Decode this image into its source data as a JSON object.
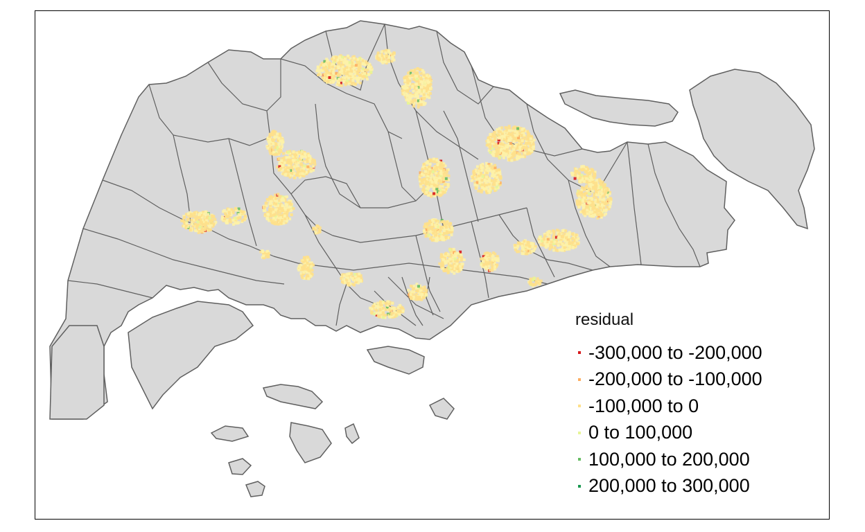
{
  "legend": {
    "title": "residual",
    "classes": [
      {
        "label": "-300,000 to -200,000",
        "color": "#d7191c"
      },
      {
        "label": "-200,000 to -100,000",
        "color": "#fdae61"
      },
      {
        "label": "-100,000 to 0",
        "color": "#fee08b"
      },
      {
        "label": "0 to 100,000",
        "color": "#e6f598"
      },
      {
        "label": "100,000 to 200,000",
        "color": "#66bd63"
      },
      {
        "label": "200,000 to 300,000",
        "color": "#1a9850"
      }
    ]
  },
  "map": {
    "land_fill": "#d9d9d9",
    "boundary_color": "#5f5f5f",
    "dominant_residual_color": "#fdf2a8"
  }
}
